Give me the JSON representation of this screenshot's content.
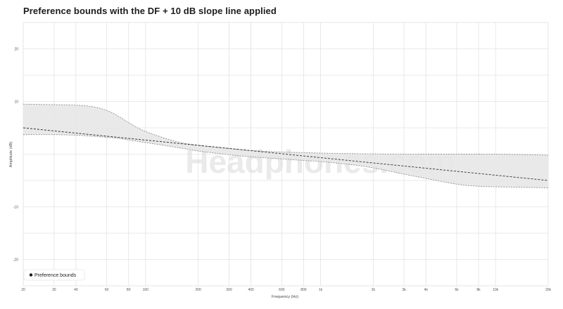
{
  "chart_data": {
    "type": "area",
    "title": "Preference bounds with the DF + 10 dB slope line applied",
    "xlabel": "Frequency (Hz)",
    "ylabel": "Amplitude (dB)",
    "xscale": "log",
    "xlim": [
      20,
      20000
    ],
    "ylim": [
      -25,
      25
    ],
    "x_ticks": [
      20,
      30,
      40,
      60,
      80,
      100,
      200,
      300,
      400,
      600,
      800,
      1000,
      2000,
      3000,
      4000,
      6000,
      8000,
      10000,
      20000
    ],
    "x_tick_labels": [
      "20",
      "30",
      "40",
      "60",
      "80",
      "100",
      "200",
      "300",
      "400",
      "600",
      "800",
      "1k",
      "2k",
      "3k",
      "4k",
      "6k",
      "8k",
      "10k",
      "20k"
    ],
    "y_ticks": [
      20,
      10,
      -10,
      -20
    ],
    "y_tick_labels": [
      "20",
      "10",
      "-10",
      "-20"
    ],
    "grid": true,
    "legend": {
      "placement": "bottom-left",
      "entries": [
        "Preference bounds"
      ]
    },
    "watermark": "Headphones.com",
    "series": [
      {
        "name": "Preference bounds",
        "kind": "band",
        "x": [
          20,
          30,
          40,
          50,
          60,
          70,
          80,
          100,
          150,
          200,
          300,
          400,
          600,
          800,
          1000,
          1500,
          2000,
          3000,
          4000,
          6000,
          8000,
          10000,
          15000,
          20000
        ],
        "upper": [
          9.5,
          9.4,
          9.3,
          9.0,
          8.3,
          7.2,
          6.0,
          4.3,
          2.4,
          1.7,
          1.1,
          0.7,
          0.4,
          0.3,
          0.2,
          0.1,
          0.05,
          0.0,
          0.0,
          0.0,
          0.0,
          0.0,
          -0.1,
          -0.2
        ],
        "lower": [
          3.7,
          3.7,
          3.6,
          3.4,
          3.2,
          3.0,
          2.7,
          2.2,
          1.3,
          0.6,
          -0.1,
          -0.5,
          -0.9,
          -1.2,
          -1.4,
          -2.0,
          -2.6,
          -3.8,
          -4.6,
          -5.7,
          -6.1,
          -6.2,
          -6.3,
          -6.4
        ]
      },
      {
        "kind": "line",
        "style": "dashed",
        "x": [
          20,
          20000
        ],
        "y": [
          5.0,
          -5.0
        ]
      }
    ],
    "colors": {
      "band_fill": "#e7e7e7",
      "band_edge": "#8f8f8f",
      "slope_line": "#2a2a2a",
      "legend_dot": "#1a1a1a"
    }
  }
}
